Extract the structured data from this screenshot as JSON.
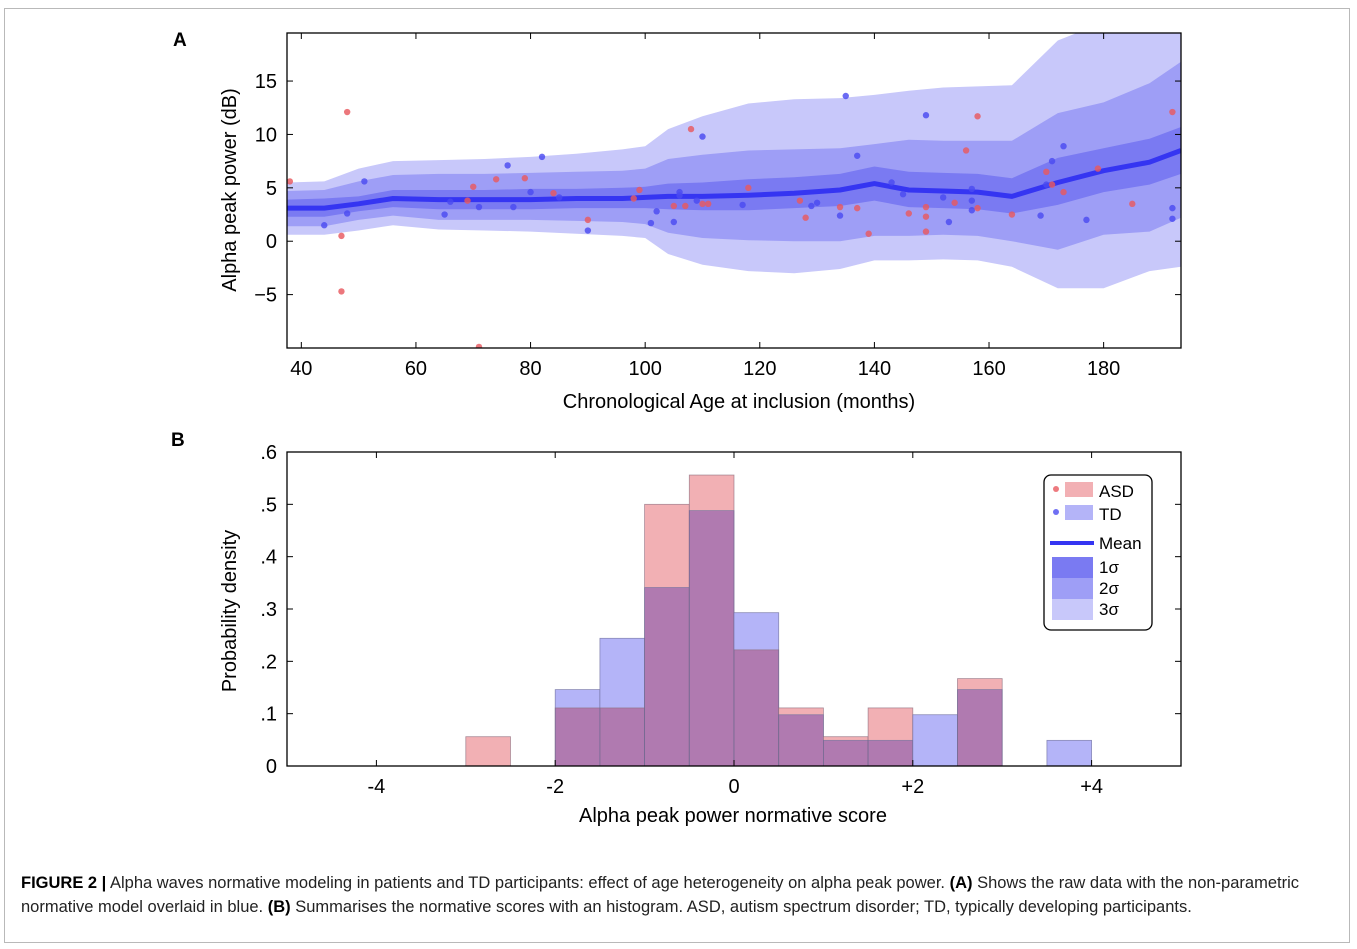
{
  "figure": {
    "panel_a_label": "A",
    "panel_b_label": "B",
    "caption_label": "FIGURE 2 |",
    "caption_intro": "Alpha waves normative modeling in patients and TD participants: effect of age heterogeneity on alpha peak power.",
    "caption_a_tag": "(A)",
    "caption_a_text": "Shows the raw data with the non-parametric normative model overlaid in blue.",
    "caption_b_tag": "(B)",
    "caption_b_text": "Summarises the normative scores with an histogram. ASD, autism spectrum disorder; TD, typically developing participants."
  },
  "colors": {
    "asd": "#e8595f",
    "td": "#4b4bf0",
    "mean": "#3535f2",
    "band1": "#7a7af2",
    "band2": "#9e9ef6",
    "band3": "#c8c8fa",
    "hist_asd": "#f2b0b4",
    "hist_td": "#b4b4f8",
    "hist_overlap": "#b07ab0"
  },
  "chart_data": [
    {
      "type": "scatter",
      "xlabel": "Chronological Age at inclusion (months)",
      "ylabel": "Alpha peak power (dB)",
      "xlim": [
        37.5,
        193.5
      ],
      "ylim": [
        -10,
        19.5
      ],
      "xticks": [
        40,
        60,
        80,
        100,
        120,
        140,
        160,
        180
      ],
      "yticks": [
        -5,
        0,
        5,
        10,
        15
      ],
      "ytick_labels": [
        "−5",
        "0",
        "5",
        "10",
        "15"
      ],
      "model": {
        "x": [
          37.5,
          44,
          50,
          56,
          64,
          72,
          80,
          88,
          96,
          100,
          104,
          110,
          118,
          126,
          134,
          140,
          146,
          152,
          158,
          164,
          172,
          180,
          188,
          193.5
        ],
        "mean": [
          3.1,
          3.1,
          3.5,
          4.0,
          3.9,
          3.9,
          3.9,
          4.0,
          4.0,
          4.1,
          4.2,
          4.2,
          4.3,
          4.5,
          4.8,
          5.4,
          4.8,
          4.7,
          4.6,
          4.2,
          5.5,
          6.6,
          7.4,
          8.5
        ],
        "s1_lo": [
          2.3,
          2.3,
          2.8,
          3.2,
          3.0,
          3.0,
          3.0,
          3.1,
          3.1,
          3.1,
          3.0,
          2.9,
          2.9,
          3.1,
          3.3,
          3.8,
          3.2,
          3.1,
          3.0,
          2.6,
          3.4,
          4.6,
          5.3,
          6.3
        ],
        "s1_hi": [
          3.9,
          4.0,
          4.2,
          4.8,
          4.8,
          4.8,
          4.9,
          4.9,
          5.0,
          5.1,
          5.4,
          5.5,
          5.8,
          6.0,
          6.3,
          7.0,
          6.5,
          6.4,
          6.3,
          5.9,
          7.8,
          8.7,
          9.6,
          10.7
        ],
        "s2_lo": [
          1.4,
          1.4,
          2.0,
          2.4,
          2.0,
          2.0,
          2.0,
          1.9,
          1.8,
          1.6,
          0.8,
          0.3,
          0.1,
          0.0,
          0.0,
          0.5,
          0.5,
          0.6,
          0.5,
          0.0,
          -0.8,
          0.6,
          0.9,
          2.2
        ],
        "s2_hi": [
          4.7,
          4.8,
          5.6,
          6.2,
          6.3,
          6.3,
          6.4,
          6.5,
          6.6,
          6.8,
          7.7,
          8.1,
          8.5,
          8.6,
          8.7,
          9.1,
          9.5,
          9.4,
          9.4,
          9.4,
          12.0,
          13.0,
          14.8,
          16.8
        ],
        "s3_lo": [
          0.6,
          0.6,
          1.0,
          1.5,
          1.1,
          1.0,
          0.9,
          0.7,
          0.5,
          0.3,
          -1.2,
          -2.2,
          -2.8,
          -3.0,
          -2.6,
          -1.8,
          -1.8,
          -1.7,
          -1.8,
          -2.4,
          -4.4,
          -4.4,
          -2.8,
          -2.4
        ],
        "s3_hi": [
          5.5,
          5.6,
          6.8,
          7.5,
          7.6,
          7.7,
          7.9,
          8.2,
          8.6,
          8.9,
          10.5,
          11.7,
          12.9,
          13.3,
          13.4,
          13.7,
          14.1,
          14.4,
          14.5,
          14.6,
          18.8,
          20.5,
          22.5,
          24.0
        ]
      },
      "asd_points": [
        [
          38,
          5.6
        ],
        [
          47,
          0.5
        ],
        [
          47,
          -4.7
        ],
        [
          48,
          12.1
        ],
        [
          69,
          3.8
        ],
        [
          70,
          5.1
        ],
        [
          71,
          -9.9
        ],
        [
          74,
          5.8
        ],
        [
          79,
          5.9
        ],
        [
          84,
          4.5
        ],
        [
          90,
          2.0
        ],
        [
          98,
          4.0
        ],
        [
          99,
          4.8
        ],
        [
          105,
          3.3
        ],
        [
          107,
          3.3
        ],
        [
          108,
          10.5
        ],
        [
          110,
          3.5
        ],
        [
          111,
          3.5
        ],
        [
          118,
          5.0
        ],
        [
          127,
          3.8
        ],
        [
          128,
          2.2
        ],
        [
          134,
          3.2
        ],
        [
          137,
          3.1
        ],
        [
          139,
          0.7
        ],
        [
          146,
          2.6
        ],
        [
          149,
          3.2
        ],
        [
          149,
          2.3
        ],
        [
          149,
          0.9
        ],
        [
          154,
          3.6
        ],
        [
          156,
          8.5
        ],
        [
          158,
          11.7
        ],
        [
          158,
          3.1
        ],
        [
          164,
          2.5
        ],
        [
          170,
          6.5
        ],
        [
          171,
          5.3
        ],
        [
          173,
          4.6
        ],
        [
          179,
          6.8
        ],
        [
          185,
          3.5
        ],
        [
          192,
          12.1
        ]
      ],
      "td_points": [
        [
          44,
          1.5
        ],
        [
          48,
          2.6
        ],
        [
          51,
          5.6
        ],
        [
          65,
          2.5
        ],
        [
          66,
          3.7
        ],
        [
          71,
          3.2
        ],
        [
          76,
          7.1
        ],
        [
          77,
          3.2
        ],
        [
          80,
          4.6
        ],
        [
          82,
          7.9
        ],
        [
          85,
          4.1
        ],
        [
          90,
          1.0
        ],
        [
          101,
          1.7
        ],
        [
          102,
          2.8
        ],
        [
          105,
          1.8
        ],
        [
          106,
          4.3
        ],
        [
          106,
          4.6
        ],
        [
          109,
          3.8
        ],
        [
          110,
          9.8
        ],
        [
          117,
          3.4
        ],
        [
          129,
          3.3
        ],
        [
          130,
          3.6
        ],
        [
          134,
          2.4
        ],
        [
          135,
          13.6
        ],
        [
          137,
          8.0
        ],
        [
          143,
          5.5
        ],
        [
          145,
          4.4
        ],
        [
          149,
          11.8
        ],
        [
          152,
          4.1
        ],
        [
          153,
          1.8
        ],
        [
          157,
          4.9
        ],
        [
          157,
          3.8
        ],
        [
          157,
          2.9
        ],
        [
          169,
          2.4
        ],
        [
          170,
          5.3
        ],
        [
          171,
          7.5
        ],
        [
          173,
          8.9
        ],
        [
          177,
          2.0
        ],
        [
          192,
          3.1
        ],
        [
          192,
          2.1
        ]
      ]
    },
    {
      "type": "bar",
      "subtype": "histogram",
      "xlabel": "Alpha peak power normative score",
      "ylabel": "Probability density",
      "xlim": [
        -5,
        5
      ],
      "ylim": [
        0,
        0.6
      ],
      "xticks": [
        -4,
        -2,
        0,
        2,
        4
      ],
      "xtick_labels": [
        "-4",
        "-2",
        "0",
        "+2",
        "+4"
      ],
      "yticks": [
        0,
        0.1,
        0.2,
        0.3,
        0.4,
        0.5,
        0.6
      ],
      "ytick_labels": [
        "0",
        ".1",
        ".2",
        ".3",
        ".4",
        ".5",
        ".6"
      ],
      "bin_edges": [
        -3,
        -2.5,
        -2,
        -1.5,
        -1,
        -0.5,
        0,
        0.5,
        1,
        1.5,
        2,
        2.5,
        3,
        3.5,
        4
      ],
      "series": [
        {
          "name": "ASD",
          "values": [
            0.056,
            0,
            0.111,
            0.111,
            0.5,
            0.556,
            0.222,
            0.111,
            0.056,
            0.111,
            0,
            0.167,
            0,
            0
          ]
        },
        {
          "name": "TD",
          "values": [
            0,
            0,
            0.146,
            0.244,
            0.341,
            0.488,
            0.293,
            0.098,
            0.049,
            0.049,
            0.098,
            0.146,
            0,
            0.049
          ]
        }
      ],
      "legend": {
        "placement": "top-right",
        "entries": [
          "ASD",
          "TD",
          "Mean",
          "1σ",
          "2σ",
          "3σ"
        ]
      }
    }
  ]
}
